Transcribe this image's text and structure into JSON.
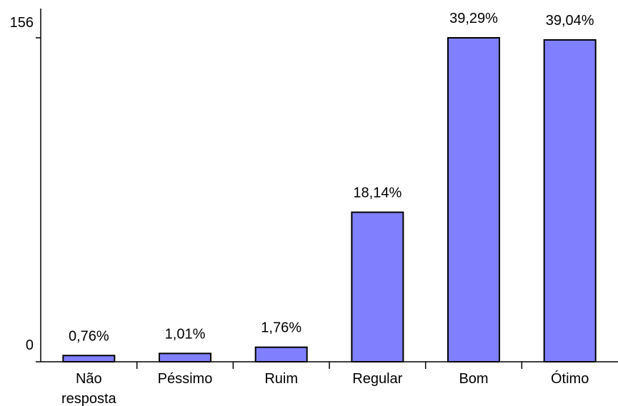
{
  "chart_data": {
    "type": "bar",
    "categories": [
      "Não resposta",
      "Péssimo",
      "Ruim",
      "Regular",
      "Bom",
      "Ótimo"
    ],
    "category_lines": [
      [
        "Não",
        "resposta"
      ],
      [
        "Péssimo"
      ],
      [
        "Ruim"
      ],
      [
        "Regular"
      ],
      [
        "Bom"
      ],
      [
        "Ótimo"
      ]
    ],
    "values": [
      3,
      4,
      7,
      72,
      156,
      155
    ],
    "data_labels": [
      "0,76%",
      "1,01%",
      "1,76%",
      "18,14%",
      "39,29%",
      "39,04%"
    ],
    "y_ticks": [
      "0",
      "156"
    ],
    "ylim": [
      0,
      156
    ],
    "title": "",
    "xlabel": "",
    "ylabel": "",
    "grid": false,
    "bar_color": "#8080ff",
    "bar_stroke": "#000000"
  }
}
